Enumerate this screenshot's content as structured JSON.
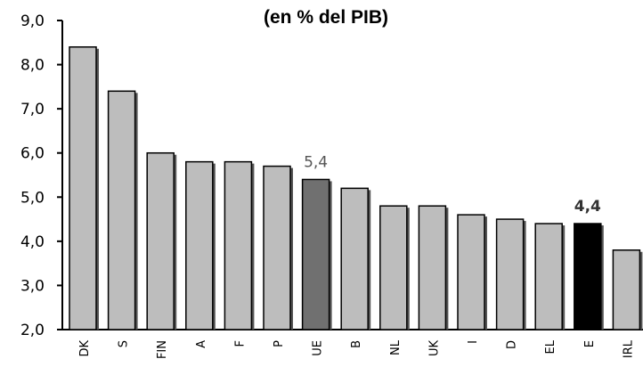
{
  "chart_data": {
    "type": "bar",
    "title": "(en % del PIB)",
    "categories": [
      "DK",
      "S",
      "FIN",
      "A",
      "F",
      "P",
      "UE",
      "B",
      "NL",
      "UK",
      "I",
      "D",
      "EL",
      "E",
      "IRL"
    ],
    "values": [
      8.4,
      7.4,
      6.0,
      5.8,
      5.8,
      5.7,
      5.4,
      5.2,
      4.8,
      4.8,
      4.6,
      4.5,
      4.4,
      4.4,
      3.8
    ],
    "ylim": [
      2.0,
      9.0
    ],
    "yticks": [
      "2,0",
      "3,0",
      "4,0",
      "5,0",
      "6,0",
      "7,0",
      "8,0",
      "9,0"
    ],
    "data_labels": [
      {
        "category": "UE",
        "text": "5,4"
      },
      {
        "category": "E",
        "text": "4,4"
      }
    ],
    "highlight": {
      "UE": "dark-gray",
      "E": "black"
    },
    "grid": false,
    "legend": "none"
  },
  "colors": {
    "bar_default": "#bdbdbd",
    "bar_ue": "#707070",
    "bar_e": "#000000",
    "bar_edge": "#000000",
    "bar_shadow": "#555555",
    "axis": "#000000"
  }
}
